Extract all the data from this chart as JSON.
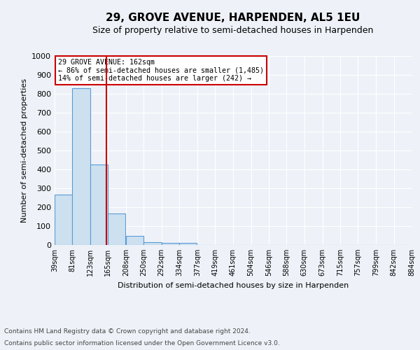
{
  "title": "29, GROVE AVENUE, HARPENDEN, AL5 1EU",
  "subtitle": "Size of property relative to semi-detached houses in Harpenden",
  "xlabel": "Distribution of semi-detached houses by size in Harpenden",
  "ylabel": "Number of semi-detached properties",
  "footnote1": "Contains HM Land Registry data © Crown copyright and database right 2024.",
  "footnote2": "Contains public sector information licensed under the Open Government Licence v3.0.",
  "annotation_line1": "29 GROVE AVENUE: 162sqm",
  "annotation_line2": "← 86% of semi-detached houses are smaller (1,485)",
  "annotation_line3": "14% of semi-detached houses are larger (242) →",
  "bar_color": "#cce0f0",
  "bar_edge_color": "#5b9bd5",
  "red_line_x": 162,
  "bins": [
    39,
    81,
    123,
    165,
    208,
    250,
    292,
    334,
    377,
    419,
    461,
    504,
    546,
    588,
    630,
    673,
    715,
    757,
    799,
    842,
    884
  ],
  "counts": [
    265,
    830,
    425,
    165,
    50,
    15,
    10,
    10,
    0,
    0,
    0,
    0,
    0,
    0,
    0,
    0,
    0,
    0,
    0,
    0
  ],
  "tick_labels": [
    "39sqm",
    "81sqm",
    "123sqm",
    "165sqm",
    "208sqm",
    "250sqm",
    "292sqm",
    "334sqm",
    "377sqm",
    "419sqm",
    "461sqm",
    "504sqm",
    "546sqm",
    "588sqm",
    "630sqm",
    "673sqm",
    "715sqm",
    "757sqm",
    "799sqm",
    "842sqm",
    "884sqm"
  ],
  "ylim": [
    0,
    1000
  ],
  "yticks": [
    0,
    100,
    200,
    300,
    400,
    500,
    600,
    700,
    800,
    900,
    1000
  ],
  "background_color": "#eef2f8",
  "grid_color": "#ffffff",
  "title_fontsize": 11,
  "subtitle_fontsize": 9,
  "annotation_box_color": "#ffffff",
  "annotation_box_edge": "#cc0000"
}
